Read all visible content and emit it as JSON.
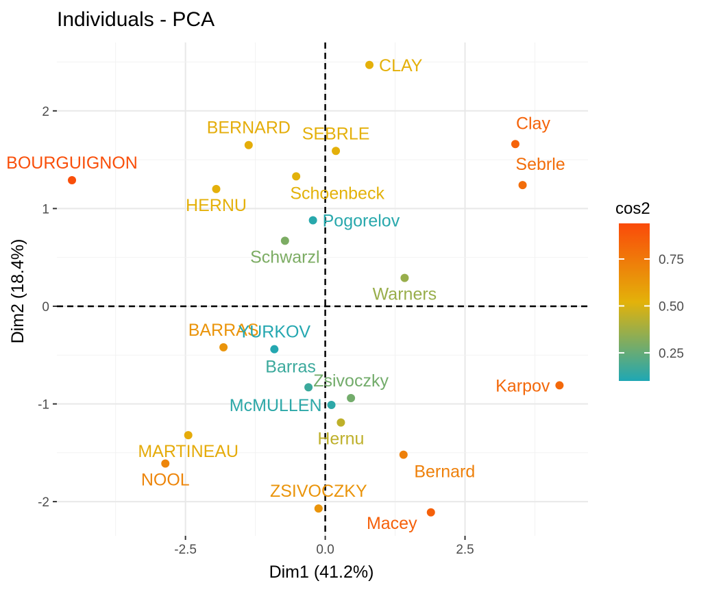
{
  "chart_data": {
    "type": "scatter",
    "title": "Individuals - PCA",
    "xlabel": "Dim1 (41.2%)",
    "ylabel": "Dim2 (18.4%)",
    "xlim": [
      -4.8,
      4.7
    ],
    "ylim": [
      -2.35,
      2.7
    ],
    "xticks": [
      -2.5,
      0,
      2.5
    ],
    "xtick_labels": [
      "-2.5",
      "0.0",
      "2.5"
    ],
    "yticks": [
      -2,
      -1,
      0,
      1,
      2
    ],
    "ytick_labels": [
      "-2",
      "-1",
      "0",
      "1",
      "2"
    ],
    "grid": true,
    "reference_lines": {
      "x": 0,
      "y": 0,
      "style": "dashed"
    },
    "color_by": "cos2",
    "legend": {
      "title": "cos2",
      "placement": "right",
      "range": [
        0.1,
        0.94
      ],
      "ticks": [
        0.25,
        0.5,
        0.75
      ],
      "tick_labels": [
        "0.25",
        "0.50",
        "0.75"
      ],
      "colors": [
        "#1fa7b4",
        "#e3b20a",
        "#fa4a0a"
      ]
    },
    "points": [
      {
        "label": "CLAY",
        "x": 0.79,
        "y": 2.47,
        "cos2": 0.53,
        "label_pos": "right"
      },
      {
        "label": "BERNARD",
        "x": -1.37,
        "y": 1.65,
        "cos2": 0.54,
        "label_pos": "above"
      },
      {
        "label": "SEBRLE",
        "x": 0.19,
        "y": 1.59,
        "cos2": 0.53,
        "label_pos": "above"
      },
      {
        "label": "Clay",
        "x": 3.4,
        "y": 1.66,
        "cos2": 0.84,
        "label_pos": "above-right"
      },
      {
        "label": "BOURGUIGNON",
        "x": -4.53,
        "y": 1.29,
        "cos2": 0.92,
        "label_pos": "above"
      },
      {
        "label": "Schoenbeck",
        "x": -0.52,
        "y": 1.33,
        "cos2": 0.52,
        "label_pos": "below-right"
      },
      {
        "label": "Sebrle",
        "x": 3.53,
        "y": 1.24,
        "cos2": 0.8,
        "label_pos": "above-right"
      },
      {
        "label": "HERNU",
        "x": -1.95,
        "y": 1.2,
        "cos2": 0.53,
        "label_pos": "below"
      },
      {
        "label": "Pogorelov",
        "x": -0.22,
        "y": 0.88,
        "cos2": 0.12,
        "label_pos": "right"
      },
      {
        "label": "Schwarzl",
        "x": -0.72,
        "y": 0.67,
        "cos2": 0.3,
        "label_pos": "below"
      },
      {
        "label": "Warners",
        "x": 1.42,
        "y": 0.29,
        "cos2": 0.36,
        "label_pos": "below"
      },
      {
        "label": "BARRAS",
        "x": -1.82,
        "y": -0.42,
        "cos2": 0.64,
        "label_pos": "above"
      },
      {
        "label": "YURKOV",
        "x": -0.91,
        "y": -0.44,
        "cos2": 0.11,
        "label_pos": "above"
      },
      {
        "label": "Karpov",
        "x": 4.19,
        "y": -0.81,
        "cos2": 0.82,
        "label_pos": "left"
      },
      {
        "label": "Barras",
        "x": -0.3,
        "y": -0.83,
        "cos2": 0.16,
        "label_pos": "above-left"
      },
      {
        "label": "Zsivoczky",
        "x": 0.46,
        "y": -0.94,
        "cos2": 0.28,
        "label_pos": "above"
      },
      {
        "label": "McMULLEN",
        "x": 0.11,
        "y": -1.01,
        "cos2": 0.13,
        "label_pos": "left"
      },
      {
        "label": "Hernu",
        "x": 0.28,
        "y": -1.19,
        "cos2": 0.44,
        "label_pos": "below"
      },
      {
        "label": "MARTINEAU",
        "x": -2.45,
        "y": -1.32,
        "cos2": 0.55,
        "label_pos": "below"
      },
      {
        "label": "Bernard",
        "x": 1.4,
        "y": -1.52,
        "cos2": 0.72,
        "label_pos": "below-right"
      },
      {
        "label": "NOOL",
        "x": -2.86,
        "y": -1.61,
        "cos2": 0.7,
        "label_pos": "below"
      },
      {
        "label": "ZSIVOCZKY",
        "x": -0.12,
        "y": -2.07,
        "cos2": 0.64,
        "label_pos": "above"
      },
      {
        "label": "Macey",
        "x": 1.89,
        "y": -2.11,
        "cos2": 0.85,
        "label_pos": "below-left"
      }
    ]
  }
}
